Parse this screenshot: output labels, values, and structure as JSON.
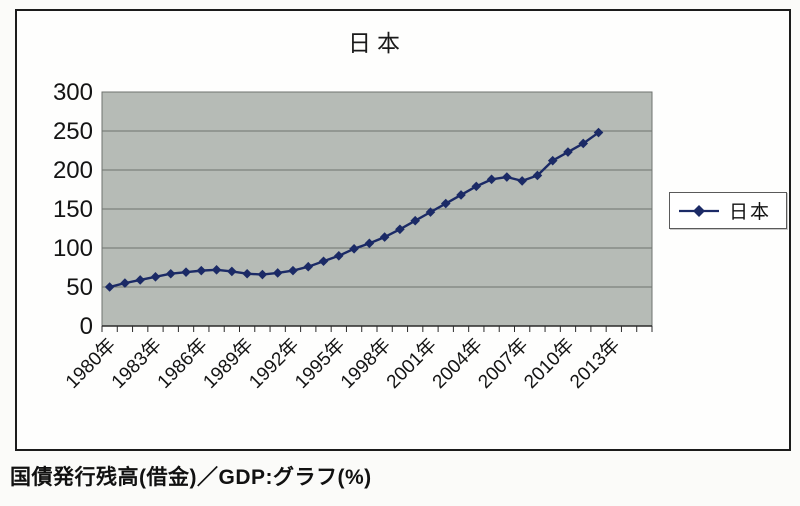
{
  "page": {
    "caption": "国債発行残高(借金)／GDP:グラフ(%)"
  },
  "chart": {
    "title": "日本",
    "legend": {
      "label": "日本",
      "position": "right"
    }
  },
  "colors": {
    "plot_bg": "#b6bbb6",
    "grid": "#6e736e",
    "series": "#1b2a66",
    "axis_text": "#141414",
    "axis_line": "#2a2a2a",
    "frame_border": "#1c1c1c"
  },
  "chart_data": {
    "type": "line",
    "title": "日本",
    "xlabel": "",
    "ylabel": "",
    "ylim": [
      0,
      300
    ],
    "y_ticks": [
      0,
      50,
      100,
      150,
      200,
      250,
      300
    ],
    "grid": true,
    "legend_position": "right",
    "n_categories": 36,
    "axis_year_range": [
      "1980",
      "2015"
    ],
    "x_tick_labels": [
      "1980年",
      "1983年",
      "1986年",
      "1989年",
      "1992年",
      "1995年",
      "1998年",
      "2001年",
      "2004年",
      "2007年",
      "2010年",
      "2013年"
    ],
    "x_tick_positions": [
      0,
      3,
      6,
      9,
      12,
      15,
      18,
      21,
      24,
      27,
      30,
      33
    ],
    "series": [
      {
        "name": "日本",
        "x": [
          1980,
          1981,
          1982,
          1983,
          1984,
          1985,
          1986,
          1987,
          1988,
          1989,
          1990,
          1991,
          1992,
          1993,
          1994,
          1995,
          1996,
          1997,
          1998,
          1999,
          2000,
          2001,
          2002,
          2003,
          2004,
          2005,
          2006,
          2007,
          2008,
          2009,
          2010,
          2011,
          2012
        ],
        "values": [
          50,
          55,
          59,
          63,
          67,
          69,
          71,
          72,
          70,
          67,
          66,
          68,
          71,
          76,
          83,
          90,
          99,
          106,
          114,
          124,
          135,
          146,
          157,
          168,
          179,
          188,
          191,
          186,
          193,
          212,
          223,
          234,
          248
        ]
      }
    ]
  }
}
